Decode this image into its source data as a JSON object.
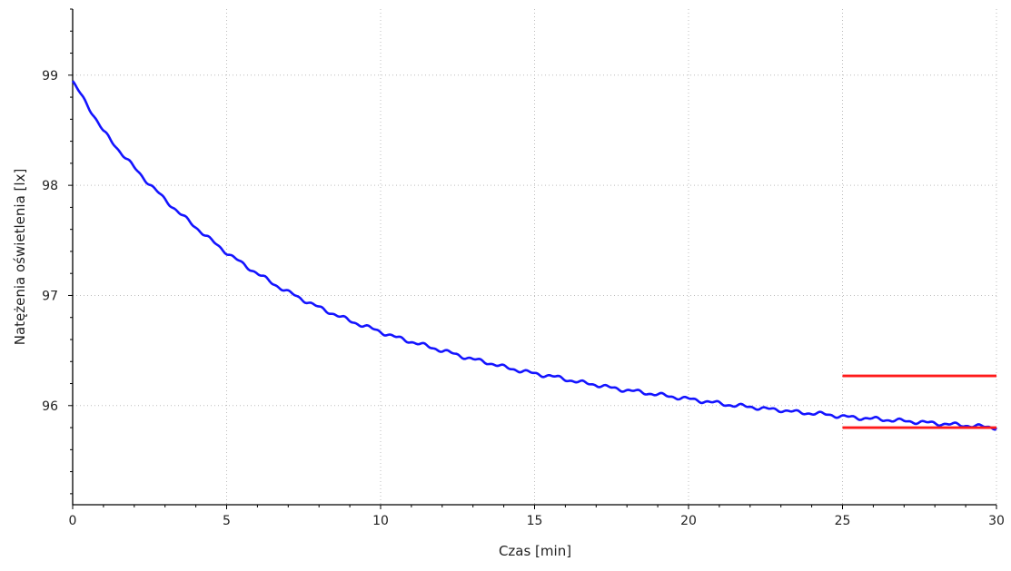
{
  "chart_data": {
    "type": "line",
    "title": "",
    "xlabel": "Czas [min]",
    "ylabel": "Natężenia oświetlenia [lx]",
    "xlim": [
      0,
      30
    ],
    "ylim": [
      95.1,
      99.6
    ],
    "xticks": [
      0,
      5,
      10,
      15,
      20,
      25,
      30
    ],
    "yticks": [
      96,
      97,
      98,
      99
    ],
    "x_tick_labels": [
      "0",
      "5",
      "10",
      "15",
      "20",
      "25",
      "30"
    ],
    "y_tick_labels": [
      "96",
      "97",
      "98",
      "99"
    ],
    "grid": true,
    "legend": "none",
    "series": [
      {
        "color": "#1414ff",
        "x": [
          0,
          0.5,
          1,
          1.5,
          2,
          2.5,
          3,
          3.5,
          4,
          4.5,
          5,
          5.5,
          6,
          6.5,
          7,
          7.5,
          8,
          8.5,
          9,
          9.5,
          10,
          10.5,
          11,
          11.5,
          12,
          12.5,
          13,
          13.5,
          14,
          14.5,
          15,
          15.5,
          16,
          16.5,
          17,
          17.5,
          18,
          18.5,
          19,
          19.5,
          20,
          20.5,
          21,
          21.5,
          22,
          22.5,
          23,
          23.5,
          24,
          24.5,
          25,
          25.5,
          26,
          26.5,
          27,
          27.5,
          28,
          28.5,
          29,
          29.5,
          30
        ],
        "y": [
          98.94,
          98.72,
          98.49,
          98.32,
          98.16,
          98.01,
          97.87,
          97.74,
          97.62,
          97.5,
          97.39,
          97.29,
          97.2,
          97.11,
          97.03,
          96.96,
          96.89,
          96.83,
          96.77,
          96.72,
          96.67,
          96.62,
          96.58,
          96.54,
          96.5,
          96.46,
          96.42,
          96.39,
          96.35,
          96.32,
          96.29,
          96.27,
          96.24,
          96.21,
          96.19,
          96.16,
          96.14,
          96.12,
          96.1,
          96.08,
          96.06,
          96.04,
          96.02,
          96.0,
          95.99,
          95.97,
          95.96,
          95.94,
          95.93,
          95.92,
          95.9,
          95.89,
          95.88,
          95.87,
          95.86,
          95.85,
          95.84,
          95.83,
          95.82,
          95.81,
          95.8
        ]
      },
      {
        "color": "#ff1a1a",
        "x": [
          25,
          30
        ],
        "y": [
          96.27,
          96.27
        ]
      },
      {
        "color": "#ff1a1a",
        "x": [
          25,
          30
        ],
        "y": [
          95.8,
          95.8
        ]
      }
    ]
  }
}
